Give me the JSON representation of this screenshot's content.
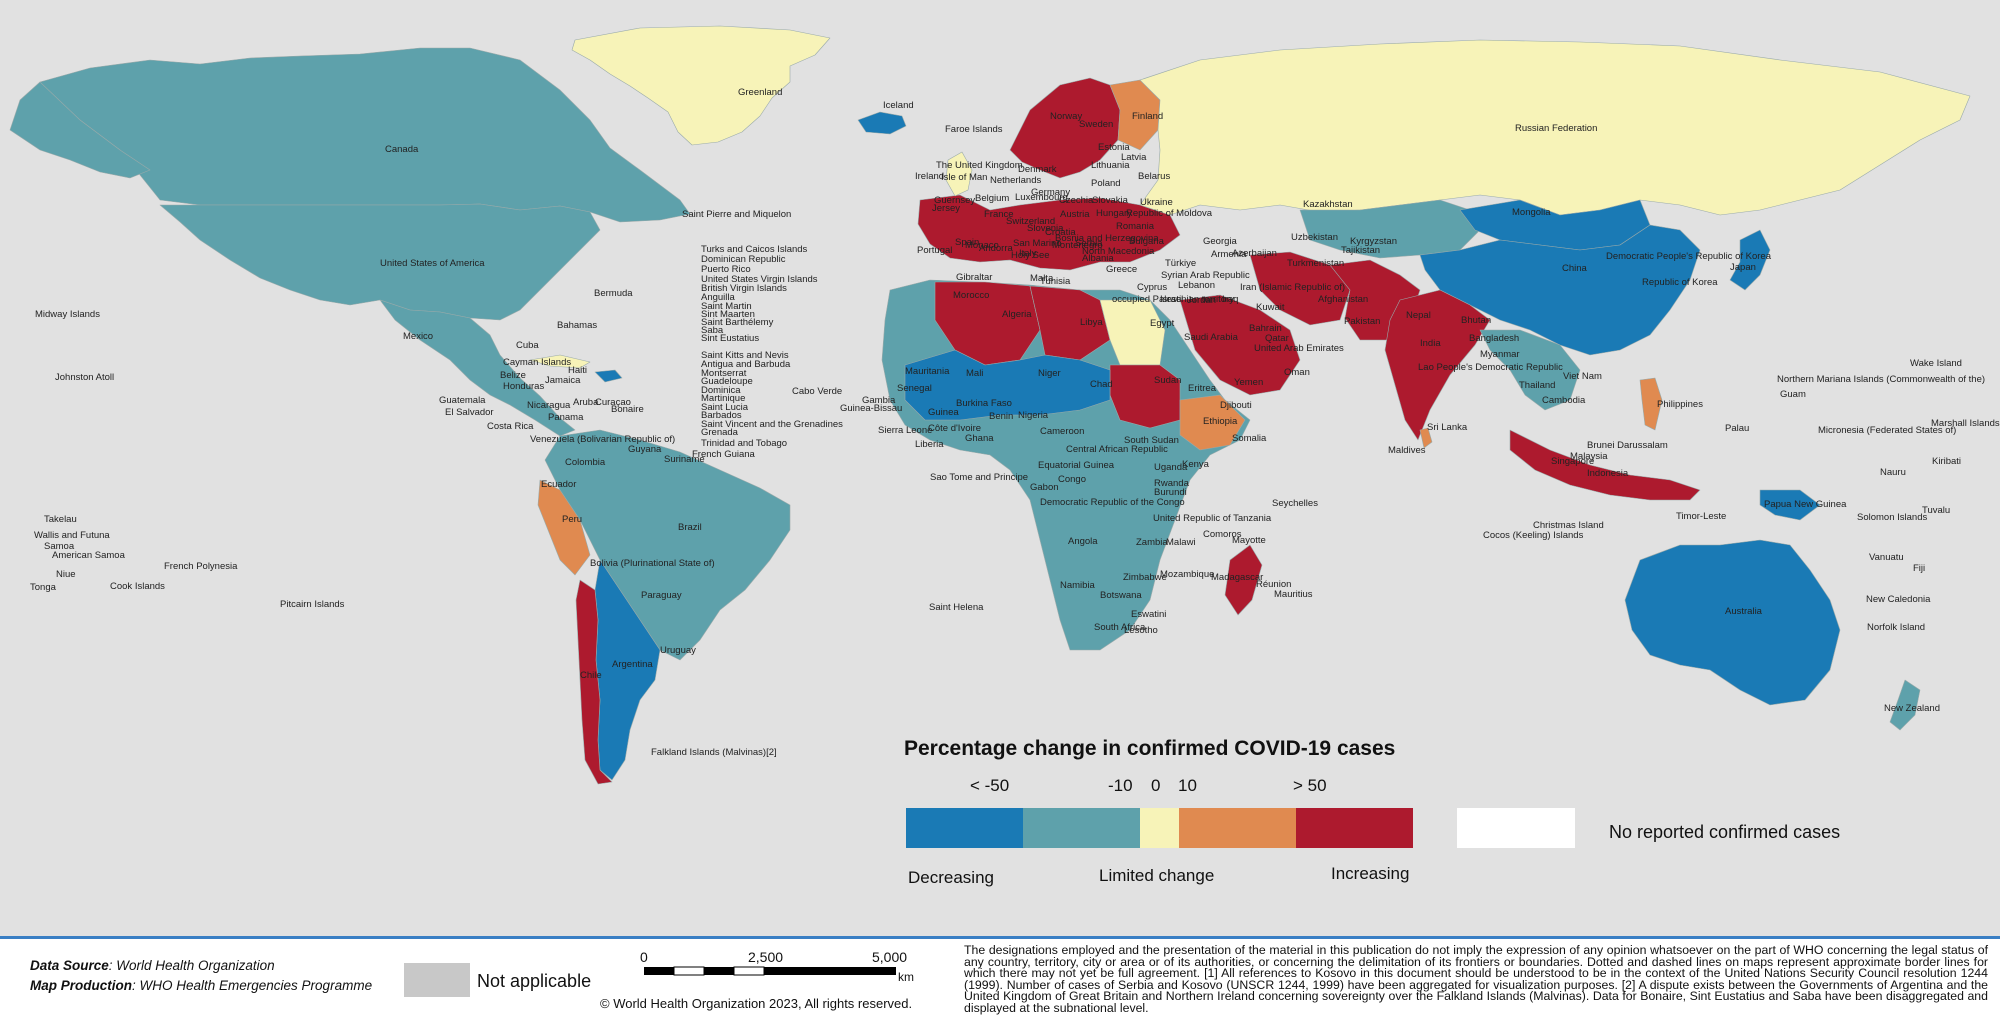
{
  "legend": {
    "title": "Percentage change in confirmed COVID-19 cases",
    "ticks": [
      "< -50",
      "-10",
      "0",
      "10",
      "> 50"
    ],
    "categories": [
      "Decreasing",
      "Limited change",
      "Increasing"
    ],
    "no_report_label": "No reported confirmed cases",
    "colors": {
      "lt_minus50": "#1a7ab5",
      "minus50_to_minus10": "#5ea1ab",
      "minus10_to_10": "#f7f3b8",
      "10_to_50": "#e08a50",
      "gt_50": "#ad1a2e",
      "no_report": "#ffffff",
      "not_applicable": "#c8c8c8",
      "background": "#e1e1e1"
    }
  },
  "footer": {
    "source_label": "Data Source",
    "source_value": ": World Health Organization",
    "production_label": "Map Production",
    "production_value": ": WHO Health Emergencies Programme",
    "not_applicable_label": "Not applicable",
    "scale_labels": [
      "0",
      "2,500",
      "5,000"
    ],
    "scale_unit": "km",
    "copyright": "© World Health Organization  2023,  All rights reserved.",
    "disclaimer": "The designations employed and the presentation of the material in this publication do not imply the expression of any opinion whatsoever on the part of WHO concerning the legal status of any country, territory, city or area or of its authorities, or concerning the delimitation of its frontiers or boundaries. Dotted and dashed lines on maps represent approximate border lines for which there may not yet be full agreement. [1] All references to Kosovo in this document should be understood to be in the context of the United Nations Security Council resolution 1244 (1999). Number of cases of Serbia and Kosovo (UNSCR 1244, 1999) have been aggregated for visualization purposes. [2] A dispute exists between the Governments of Argentina and the United Kingdom of Great Britain and Northern Ireland concerning sovereignty over the Falkland Islands (Malvinas). Data for Bonaire, Sint Eustatius and Saba have been disaggregated and displayed at the subnational level."
  },
  "map": {
    "regions": [
      {
        "name": "Greenland",
        "category": "minus10_to_10"
      },
      {
        "name": "Canada",
        "category": "minus50_to_minus10"
      },
      {
        "name": "United States of America",
        "category": "minus50_to_minus10"
      },
      {
        "name": "Mexico",
        "category": "minus50_to_minus10"
      },
      {
        "name": "Brazil",
        "category": "minus50_to_minus10"
      },
      {
        "name": "Argentina",
        "category": "lt_minus50"
      },
      {
        "name": "Chile",
        "category": "gt_50"
      },
      {
        "name": "Peru",
        "category": "10_to_50"
      },
      {
        "name": "Russian Federation",
        "category": "minus10_to_10"
      },
      {
        "name": "China",
        "category": "lt_minus50"
      },
      {
        "name": "Mongolia",
        "category": "lt_minus50"
      },
      {
        "name": "Kazakhstan",
        "category": "minus50_to_minus10"
      },
      {
        "name": "India",
        "category": "gt_50"
      },
      {
        "name": "Australia",
        "category": "lt_minus50"
      },
      {
        "name": "Indonesia",
        "category": "gt_50"
      },
      {
        "name": "Saudi Arabia",
        "category": "gt_50"
      },
      {
        "name": "Algeria",
        "category": "gt_50"
      },
      {
        "name": "Libya",
        "category": "gt_50"
      },
      {
        "name": "Egypt",
        "category": "minus10_to_10"
      },
      {
        "name": "Sudan",
        "category": "gt_50"
      },
      {
        "name": "Mali",
        "category": "lt_minus50"
      },
      {
        "name": "Niger",
        "category": "lt_minus50"
      },
      {
        "name": "Chad",
        "category": "lt_minus50"
      },
      {
        "name": "Ethiopia",
        "category": "10_to_50"
      },
      {
        "name": "Democratic Republic of the Congo",
        "category": "minus50_to_minus10"
      },
      {
        "name": "Angola",
        "category": "minus50_to_minus10"
      },
      {
        "name": "Madagascar",
        "category": "gt_50"
      },
      {
        "name": "Finland",
        "category": "10_to_50"
      },
      {
        "name": "Iceland",
        "category": "lt_minus50"
      }
    ],
    "labels": [
      {
        "text": "Greenland"
      },
      {
        "text": "Iceland"
      },
      {
        "text": "Faroe Islands"
      },
      {
        "text": "Canada"
      },
      {
        "text": "United States of America"
      },
      {
        "text": "Saint Pierre and Miquelon"
      },
      {
        "text": "Midway Islands"
      },
      {
        "text": "Bermuda"
      },
      {
        "text": "Johnston Atoll"
      },
      {
        "text": "Mexico"
      },
      {
        "text": "Bahamas"
      },
      {
        "text": "Cuba"
      },
      {
        "text": "Cayman Islands"
      },
      {
        "text": "Belize"
      },
      {
        "text": "Honduras"
      },
      {
        "text": "Jamaica"
      },
      {
        "text": "Haiti"
      },
      {
        "text": "Guatemala"
      },
      {
        "text": "El Salvador"
      },
      {
        "text": "Nicaragua"
      },
      {
        "text": "Costa Rica"
      },
      {
        "text": "Panama"
      },
      {
        "text": "Aruba"
      },
      {
        "text": "Curaçao"
      },
      {
        "text": "Bonaire"
      },
      {
        "text": "Turks and Caicos Islands"
      },
      {
        "text": "Dominican Republic"
      },
      {
        "text": "Puerto Rico"
      },
      {
        "text": "United States Virgin Islands"
      },
      {
        "text": "British Virgin Islands"
      },
      {
        "text": "Anguilla"
      },
      {
        "text": "Saint Martin"
      },
      {
        "text": "Sint Maarten"
      },
      {
        "text": "Saint Barthélemy"
      },
      {
        "text": "Saba"
      },
      {
        "text": "Sint Eustatius"
      },
      {
        "text": "Saint Kitts and Nevis"
      },
      {
        "text": "Antigua and Barbuda"
      },
      {
        "text": "Montserrat"
      },
      {
        "text": "Guadeloupe"
      },
      {
        "text": "Dominica"
      },
      {
        "text": "Martinique"
      },
      {
        "text": "Saint Lucia"
      },
      {
        "text": "Barbados"
      },
      {
        "text": "Saint Vincent and the Grenadines"
      },
      {
        "text": "Grenada"
      },
      {
        "text": "Trinidad and Tobago"
      },
      {
        "text": "Cabo Verde"
      },
      {
        "text": "Venezuela (Bolivarian Republic of)"
      },
      {
        "text": "Guyana"
      },
      {
        "text": "Suriname"
      },
      {
        "text": "French Guiana"
      },
      {
        "text": "Colombia"
      },
      {
        "text": "Ecuador"
      },
      {
        "text": "Peru"
      },
      {
        "text": "Brazil"
      },
      {
        "text": "Bolivia (Plurinational State of)"
      },
      {
        "text": "Paraguay"
      },
      {
        "text": "Chile"
      },
      {
        "text": "Argentina"
      },
      {
        "text": "Uruguay"
      },
      {
        "text": "Falkland Islands (Malvinas)[2]"
      },
      {
        "text": "Takelau"
      },
      {
        "text": "Wallis and Futuna"
      },
      {
        "text": "Samoa"
      },
      {
        "text": "American Samoa"
      },
      {
        "text": "French Polynesia"
      },
      {
        "text": "Niue"
      },
      {
        "text": "Tonga"
      },
      {
        "text": "Cook Islands"
      },
      {
        "text": "Pitcairn Islands"
      },
      {
        "text": "Saint Helena"
      },
      {
        "text": "The United Kingdom"
      },
      {
        "text": "Isle of Man"
      },
      {
        "text": "Ireland"
      },
      {
        "text": "Guernsey"
      },
      {
        "text": "Jersey"
      },
      {
        "text": "Norway"
      },
      {
        "text": "Sweden"
      },
      {
        "text": "Finland"
      },
      {
        "text": "Estonia"
      },
      {
        "text": "Latvia"
      },
      {
        "text": "Lithuania"
      },
      {
        "text": "Belarus"
      },
      {
        "text": "Denmark"
      },
      {
        "text": "Netherlands"
      },
      {
        "text": "Belgium"
      },
      {
        "text": "Luxembourg"
      },
      {
        "text": "Germany"
      },
      {
        "text": "Poland"
      },
      {
        "text": "Czechia"
      },
      {
        "text": "Slovakia"
      },
      {
        "text": "Ukraine"
      },
      {
        "text": "Republic of Moldova"
      },
      {
        "text": "France"
      },
      {
        "text": "Switzerland"
      },
      {
        "text": "Austria"
      },
      {
        "text": "Hungary"
      },
      {
        "text": "Romania"
      },
      {
        "text": "Slovenia"
      },
      {
        "text": "Croatia"
      },
      {
        "text": "Bosnia and Herzegovina"
      },
      {
        "text": "Serbia"
      },
      {
        "text": "Bulgaria"
      },
      {
        "text": "Spain"
      },
      {
        "text": "Portugal"
      },
      {
        "text": "Andorra"
      },
      {
        "text": "Monaco"
      },
      {
        "text": "San Marino"
      },
      {
        "text": "Italy"
      },
      {
        "text": "Holy See"
      },
      {
        "text": "Montenegro"
      },
      {
        "text": "Albania"
      },
      {
        "text": "North Macedonia"
      },
      {
        "text": "Greece"
      },
      {
        "text": "Malta"
      },
      {
        "text": "Gibraltar"
      },
      {
        "text": "Türkiye"
      },
      {
        "text": "Georgia"
      },
      {
        "text": "Armenia"
      },
      {
        "text": "Azerbaijan"
      },
      {
        "text": "Cyprus"
      },
      {
        "text": "Syrian Arab Republic"
      },
      {
        "text": "Lebanon"
      },
      {
        "text": "Israel"
      },
      {
        "text": "occupied Palestinian territory"
      },
      {
        "text": "Jordan"
      },
      {
        "text": "Iraq"
      },
      {
        "text": "Iran (Islamic Republic of)"
      },
      {
        "text": "Kuwait"
      },
      {
        "text": "Bahrain"
      },
      {
        "text": "Qatar"
      },
      {
        "text": "United Arab Emirates"
      },
      {
        "text": "Oman"
      },
      {
        "text": "Yemen"
      },
      {
        "text": "Saudi Arabia"
      },
      {
        "text": "Kazakhstan"
      },
      {
        "text": "Uzbekistan"
      },
      {
        "text": "Turkmenistan"
      },
      {
        "text": "Kyrgyzstan"
      },
      {
        "text": "Tajikistan"
      },
      {
        "text": "Afghanistan"
      },
      {
        "text": "Pakistan"
      },
      {
        "text": "India"
      },
      {
        "text": "Nepal"
      },
      {
        "text": "Bhutan"
      },
      {
        "text": "Bangladesh"
      },
      {
        "text": "Sri Lanka"
      },
      {
        "text": "Maldives"
      },
      {
        "text": "Russian Federation"
      },
      {
        "text": "Mongolia"
      },
      {
        "text": "China"
      },
      {
        "text": "Democratic People's Republic of Korea"
      },
      {
        "text": "Republic of Korea"
      },
      {
        "text": "Japan"
      },
      {
        "text": "Myanmar"
      },
      {
        "text": "Lao People's Democratic Republic"
      },
      {
        "text": "Thailand"
      },
      {
        "text": "Viet Nam"
      },
      {
        "text": "Cambodia"
      },
      {
        "text": "Philippines"
      },
      {
        "text": "Malaysia"
      },
      {
        "text": "Brunei Darussalam"
      },
      {
        "text": "Singapore"
      },
      {
        "text": "Indonesia"
      },
      {
        "text": "Timor-Leste"
      },
      {
        "text": "Christmas Island"
      },
      {
        "text": "Cocos (Keeling) Islands"
      },
      {
        "text": "Papua New Guinea"
      },
      {
        "text": "Australia"
      },
      {
        "text": "New Zealand"
      },
      {
        "text": "Solomon Islands"
      },
      {
        "text": "Vanuatu"
      },
      {
        "text": "Fiji"
      },
      {
        "text": "New Caledonia"
      },
      {
        "text": "Norfolk Island"
      },
      {
        "text": "Tuvalu"
      },
      {
        "text": "Nauru"
      },
      {
        "text": "Kiribati"
      },
      {
        "text": "Marshall Islands"
      },
      {
        "text": "Micronesia (Federated States of)"
      },
      {
        "text": "Palau"
      },
      {
        "text": "Guam"
      },
      {
        "text": "Northern Mariana Islands (Commonwealth of the)"
      },
      {
        "text": "Wake Island"
      },
      {
        "text": "Morocco"
      },
      {
        "text": "Tunisia"
      },
      {
        "text": "Algeria"
      },
      {
        "text": "Libya"
      },
      {
        "text": "Egypt"
      },
      {
        "text": "Mauritania"
      },
      {
        "text": "Mali"
      },
      {
        "text": "Niger"
      },
      {
        "text": "Chad"
      },
      {
        "text": "Sudan"
      },
      {
        "text": "Senegal"
      },
      {
        "text": "Gambia"
      },
      {
        "text": "Guinea-Bissau"
      },
      {
        "text": "Guinea"
      },
      {
        "text": "Sierra Leone"
      },
      {
        "text": "Liberia"
      },
      {
        "text": "Côte d'Ivoire"
      },
      {
        "text": "Burkina Faso"
      },
      {
        "text": "Ghana"
      },
      {
        "text": "Benin"
      },
      {
        "text": "Nigeria"
      },
      {
        "text": "Cameroon"
      },
      {
        "text": "Central African Republic"
      },
      {
        "text": "South Sudan"
      },
      {
        "text": "Eritrea"
      },
      {
        "text": "Djibouti"
      },
      {
        "text": "Ethiopia"
      },
      {
        "text": "Somalia"
      },
      {
        "text": "Kenya"
      },
      {
        "text": "Uganda"
      },
      {
        "text": "Rwanda"
      },
      {
        "text": "Burundi"
      },
      {
        "text": "Equatorial Guinea"
      },
      {
        "text": "Gabon"
      },
      {
        "text": "Congo"
      },
      {
        "text": "Sao Tome and Principe"
      },
      {
        "text": "Democratic Republic of the Congo"
      },
      {
        "text": "United Republic of Tanzania"
      },
      {
        "text": "Angola"
      },
      {
        "text": "Zambia"
      },
      {
        "text": "Malawi"
      },
      {
        "text": "Mozambique"
      },
      {
        "text": "Zimbabwe"
      },
      {
        "text": "Namibia"
      },
      {
        "text": "Botswana"
      },
      {
        "text": "South Africa"
      },
      {
        "text": "Eswatini"
      },
      {
        "text": "Lesotho"
      },
      {
        "text": "Madagascar"
      },
      {
        "text": "Comoros"
      },
      {
        "text": "Mayotte"
      },
      {
        "text": "Seychelles"
      },
      {
        "text": "Réunion"
      },
      {
        "text": "Mauritius"
      }
    ]
  }
}
